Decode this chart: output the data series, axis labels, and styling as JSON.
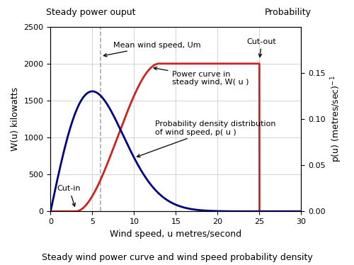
{
  "title_left": "Steady power ouput",
  "title_right": "Probability",
  "xlabel": "Wind speed, u metres/second",
  "ylabel_left": "W(u) kilowatts",
  "bottom_label": "Steady wind power curve and wind speed probability density",
  "xlim": [
    0,
    30
  ],
  "ylim_left": [
    0,
    2500
  ],
  "ylim_right": [
    0,
    0.2
  ],
  "xticks": [
    0,
    5,
    10,
    15,
    20,
    25,
    30
  ],
  "yticks_left": [
    0,
    500,
    1000,
    1500,
    2000,
    2500
  ],
  "yticks_right": [
    0,
    0.05,
    0.1,
    0.15
  ],
  "cut_in": 3,
  "cut_out": 25,
  "mean_wind_speed": 6,
  "rated_power": 2000,
  "rated_speed": 13.0,
  "power_color": "#cc2222",
  "pdf_color": "#000080",
  "mean_dashed_color": "#aaaaaa",
  "background_color": "#ffffff",
  "pdf_sigma": 5.0,
  "pdf_max": 0.13
}
